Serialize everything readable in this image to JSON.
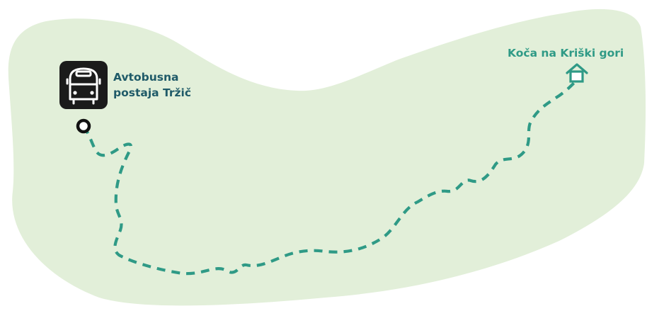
{
  "map": {
    "area_color": "#e2efd9",
    "route_color": "#2f9a86",
    "start_label_color": "#1f5a68",
    "end_label_color": "#2f9a86",
    "start": {
      "label_line1": "Avtobusna",
      "label_line2": "postaja Tržič",
      "icon": "bus-icon"
    },
    "end": {
      "label": "Koča na Kriški gori",
      "icon": "hut-icon"
    }
  }
}
